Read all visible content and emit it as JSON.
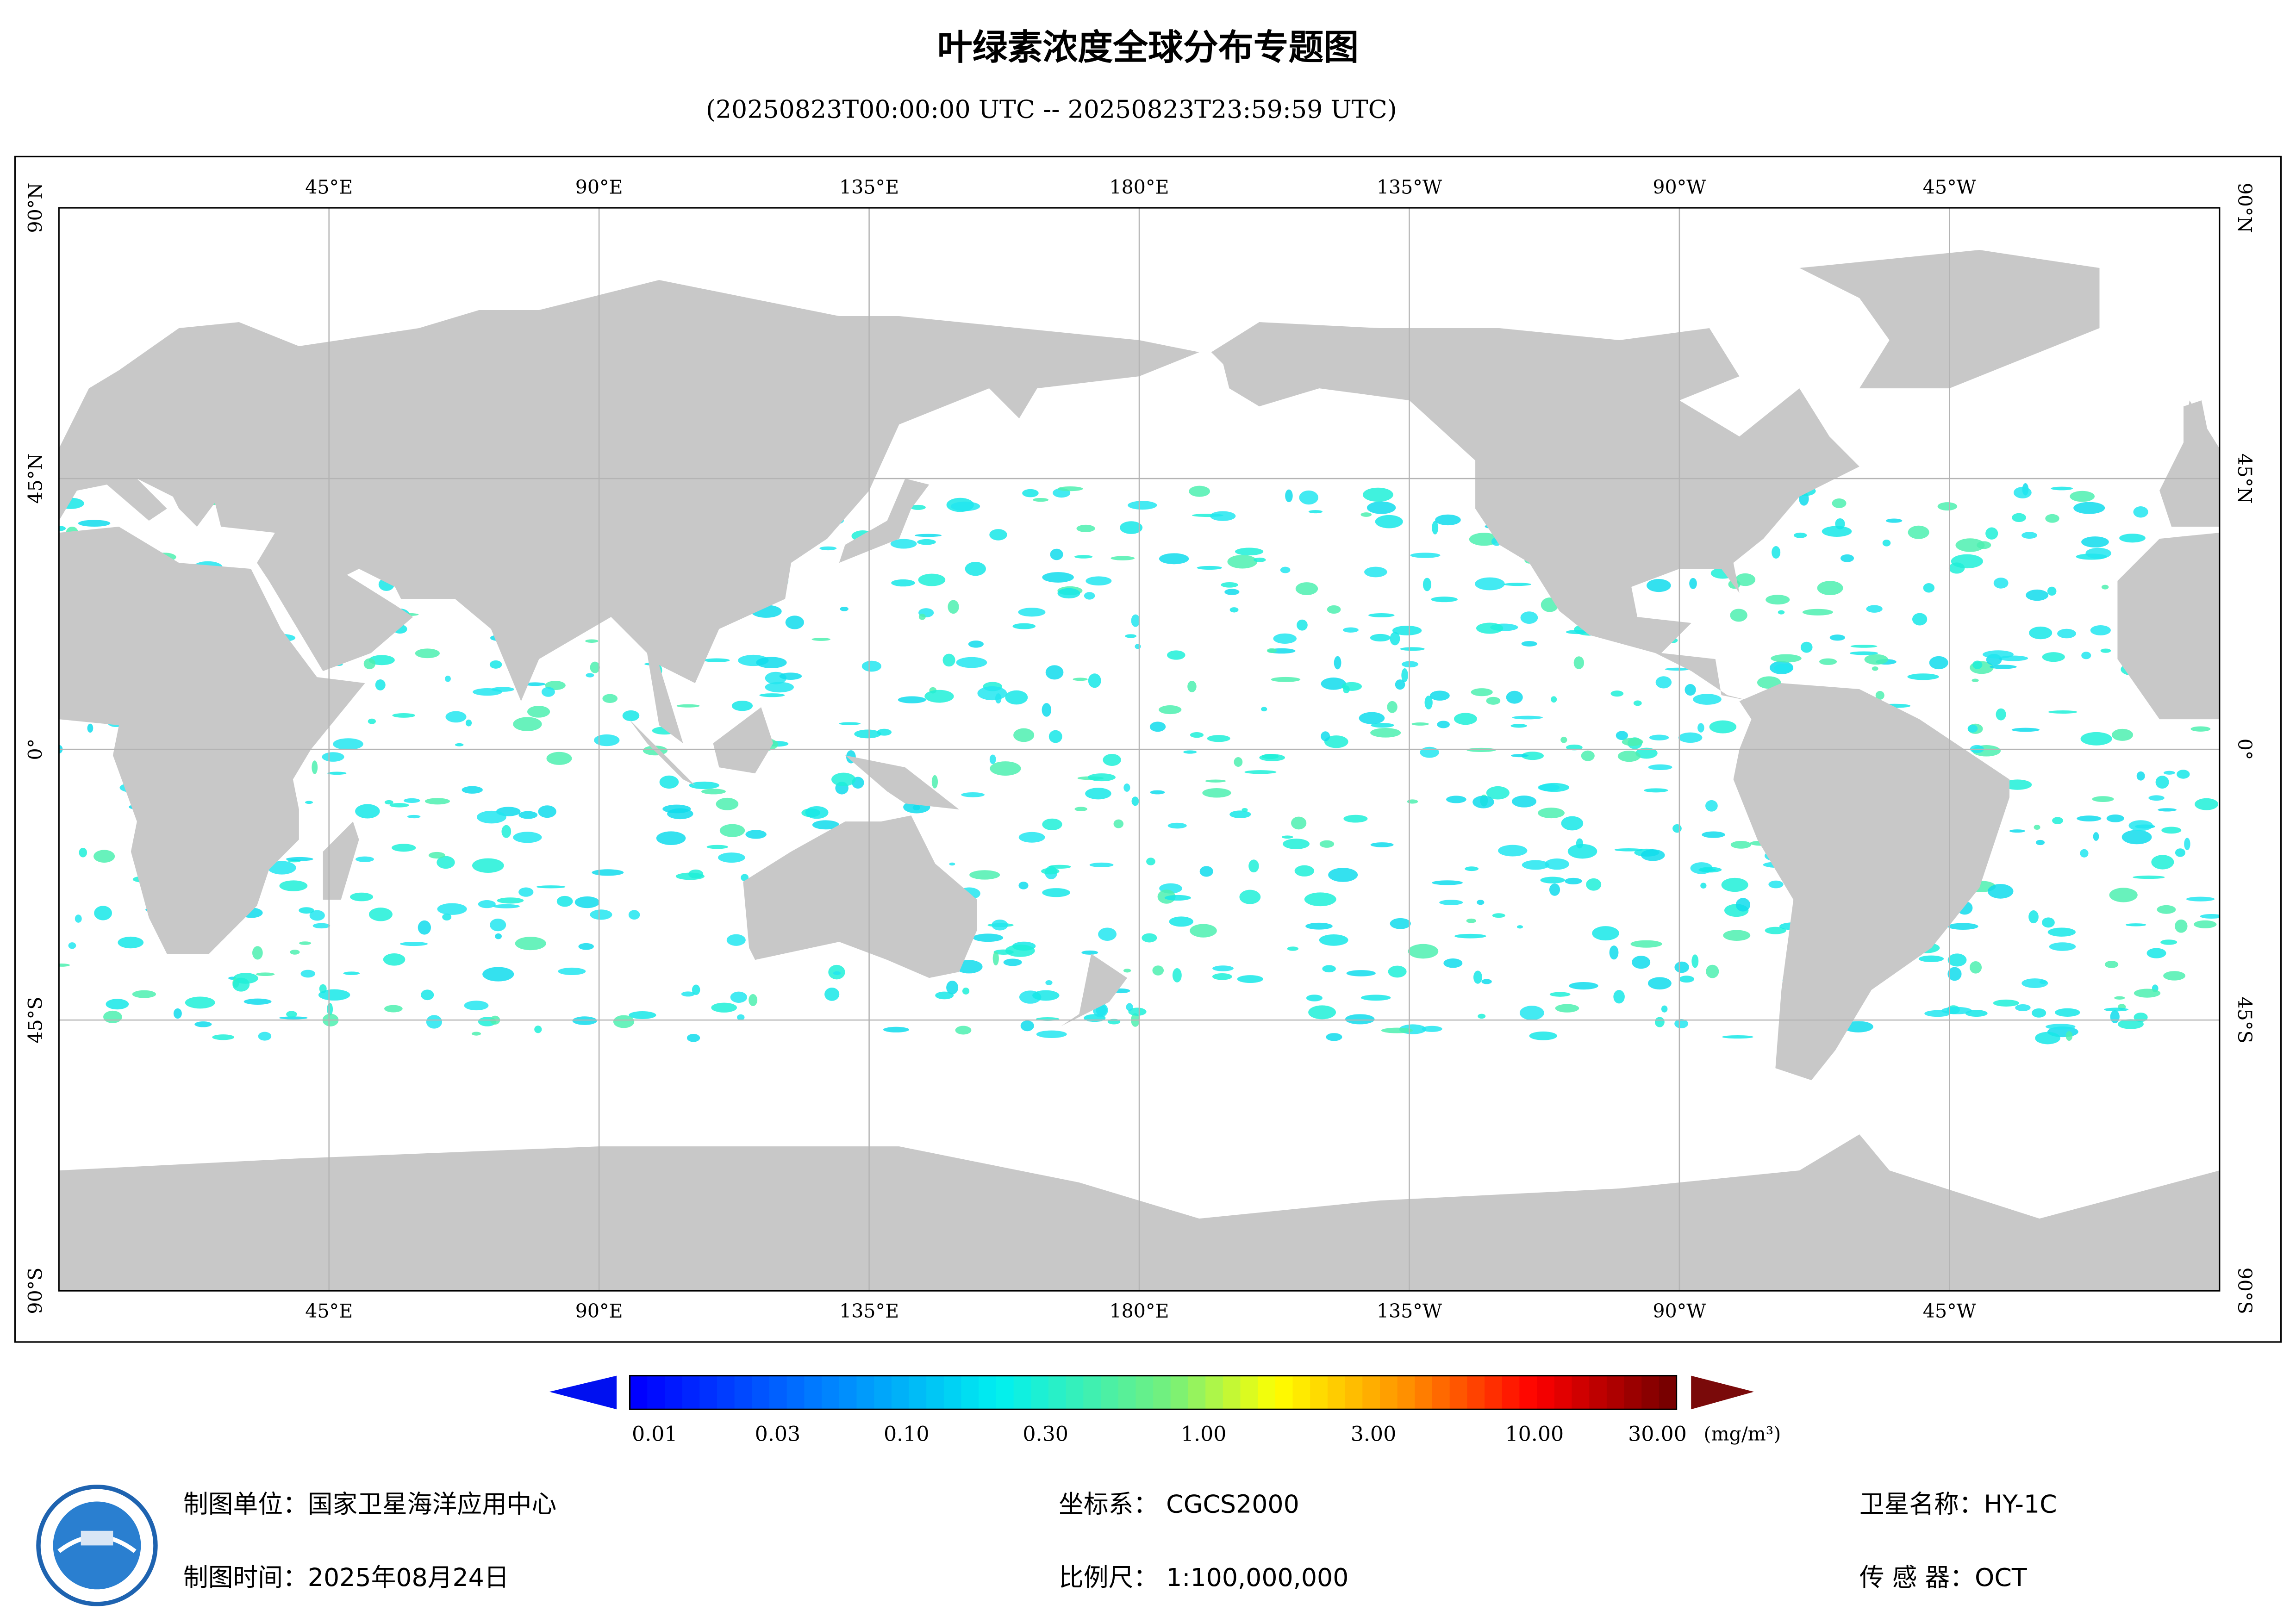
{
  "header": {
    "title": "叶绿素浓度全球分布专题图",
    "subtitle": "(20250823T00:00:00 UTC -- 20250823T23:59:59 UTC)"
  },
  "map": {
    "lon_labels": [
      "45°E",
      "90°E",
      "135°E",
      "180°E",
      "135°W",
      "90°W",
      "45°W"
    ],
    "lat_labels": [
      "90°N",
      "45°N",
      "0°",
      "45°S",
      "90°S"
    ]
  },
  "colorbar": {
    "labels": [
      "0.01",
      "0.03",
      "0.10",
      "0.30",
      "1.00",
      "3.00",
      "10.00",
      "30.00"
    ],
    "unit": "(mg/m³)"
  },
  "footer": {
    "producer": "制图单位：国家卫星海洋应用中心",
    "date": "制图时间：2025年08月24日",
    "crs": "坐标系：  CGCS2000",
    "scale": "比例尺：  1:100,000,000",
    "satellite": "卫星名称：HY-1C",
    "sensor": "传 感 器：OCT"
  }
}
